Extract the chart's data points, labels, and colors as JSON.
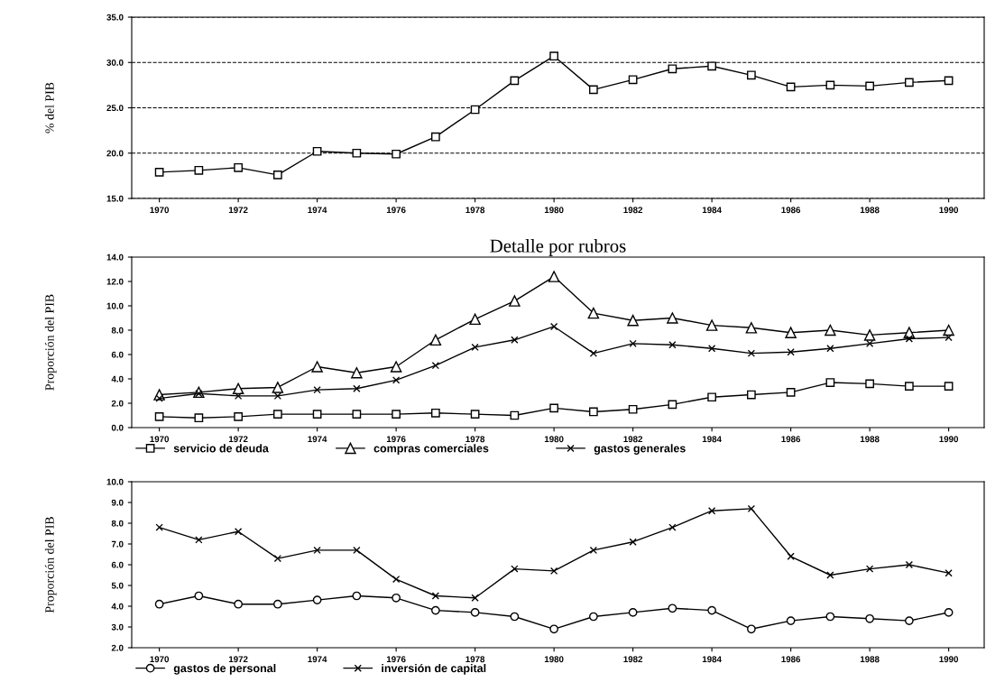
{
  "chart_data": [
    {
      "type": "line",
      "ylabel": "% del PIB",
      "x": [
        1970,
        1971,
        1972,
        1973,
        1974,
        1975,
        1976,
        1977,
        1978,
        1979,
        1980,
        1981,
        1982,
        1983,
        1984,
        1985,
        1986,
        1987,
        1988,
        1989,
        1990
      ],
      "series": [
        {
          "color": "#000000",
          "marker": "square",
          "values": [
            17.9,
            18.1,
            18.4,
            17.6,
            20.2,
            20.0,
            19.9,
            21.8,
            24.8,
            28.0,
            30.7,
            27.0,
            28.1,
            29.3,
            29.6,
            28.6,
            27.3,
            27.5,
            27.4,
            27.8,
            28.0
          ]
        }
      ],
      "xlim": [
        1969.3,
        1990.9
      ],
      "xticks": [
        1970,
        1972,
        1974,
        1976,
        1978,
        1980,
        1982,
        1984,
        1986,
        1988,
        1990
      ],
      "ylim": [
        15,
        35
      ],
      "yticks": [
        {
          "value": 15,
          "label": "15.0"
        },
        {
          "value": 20,
          "label": "20.0"
        },
        {
          "value": 25,
          "label": "25.0"
        },
        {
          "value": 30,
          "label": "30.0"
        },
        {
          "value": 35,
          "label": "35.0"
        }
      ],
      "grid": "y",
      "line_style": "solid"
    },
    {
      "type": "line",
      "title": "Detalle por rubros",
      "ylabel": "Proporción del PIB",
      "x": [
        1970,
        1971,
        1972,
        1973,
        1974,
        1975,
        1976,
        1977,
        1978,
        1979,
        1980,
        1981,
        1982,
        1983,
        1984,
        1985,
        1986,
        1987,
        1988,
        1989,
        1990
      ],
      "series": [
        {
          "name": "servicio de deuda",
          "color": "#000000",
          "marker": "square",
          "values": [
            0.9,
            0.8,
            0.9,
            1.1,
            1.1,
            1.1,
            1.1,
            1.2,
            1.1,
            1.0,
            1.6,
            1.3,
            1.5,
            1.9,
            2.5,
            2.7,
            2.9,
            3.7,
            3.6,
            3.4,
            3.4
          ]
        },
        {
          "name": "compras comerciales",
          "color": "#000000",
          "marker": "triangle",
          "values": [
            2.7,
            2.9,
            3.2,
            3.3,
            5.0,
            4.5,
            5.0,
            7.2,
            8.9,
            10.4,
            12.4,
            9.4,
            8.8,
            9.0,
            8.4,
            8.2,
            7.8,
            8.0,
            7.6,
            7.8,
            8.0
          ]
        },
        {
          "name": "gastos generales",
          "color": "#000000",
          "marker": "cross",
          "values": [
            2.4,
            2.8,
            2.6,
            2.6,
            3.1,
            3.2,
            3.9,
            5.1,
            6.6,
            7.2,
            8.3,
            6.1,
            6.9,
            6.8,
            6.5,
            6.1,
            6.2,
            6.5,
            6.9,
            7.3,
            7.4
          ]
        }
      ],
      "xlim": [
        1969.3,
        1990.9
      ],
      "xticks": [
        1970,
        1972,
        1974,
        1976,
        1978,
        1980,
        1982,
        1984,
        1986,
        1988,
        1990
      ],
      "ylim": [
        0,
        14
      ],
      "yticks": [
        {
          "value": 0,
          "label": "0.0"
        },
        {
          "value": 2,
          "label": "2.0"
        },
        {
          "value": 4,
          "label": "4.0"
        },
        {
          "value": 6,
          "label": "6.0"
        },
        {
          "value": 8,
          "label": "8.0"
        },
        {
          "value": 10,
          "label": "10.0"
        },
        {
          "value": 12,
          "label": "12.0"
        },
        {
          "value": 14,
          "label": "14.0"
        }
      ],
      "legend": "bottom",
      "line_style": "solid"
    },
    {
      "type": "line",
      "ylabel": "Proporción del PIB",
      "x": [
        1970,
        1971,
        1972,
        1973,
        1974,
        1975,
        1976,
        1977,
        1978,
        1979,
        1980,
        1981,
        1982,
        1983,
        1984,
        1985,
        1986,
        1987,
        1988,
        1989,
        1990
      ],
      "series": [
        {
          "name": "gastos de personal",
          "color": "#000000",
          "marker": "circle",
          "values": [
            4.1,
            4.5,
            4.1,
            4.1,
            4.3,
            4.5,
            4.4,
            3.8,
            3.7,
            3.5,
            2.9,
            3.5,
            3.7,
            3.9,
            3.8,
            2.9,
            3.3,
            3.5,
            3.4,
            3.3,
            3.7
          ]
        },
        {
          "name": "inversión de capital",
          "color": "#000000",
          "marker": "cross",
          "values": [
            7.8,
            7.2,
            7.6,
            6.3,
            6.7,
            6.7,
            5.3,
            4.5,
            4.4,
            5.8,
            5.7,
            6.7,
            7.1,
            7.8,
            8.6,
            8.7,
            6.4,
            5.5,
            5.8,
            6.0,
            5.6
          ]
        }
      ],
      "xlim": [
        1969.3,
        1990.9
      ],
      "xticks": [
        1970,
        1972,
        1974,
        1976,
        1978,
        1980,
        1982,
        1984,
        1986,
        1988,
        1990
      ],
      "ylim": [
        2,
        10
      ],
      "yticks": [
        {
          "value": 2,
          "label": "2.0"
        },
        {
          "value": 3,
          "label": "3.0"
        },
        {
          "value": 4,
          "label": "4.0"
        },
        {
          "value": 5,
          "label": "5.0"
        },
        {
          "value": 6,
          "label": "6.0"
        },
        {
          "value": 7,
          "label": "7.0"
        },
        {
          "value": 8,
          "label": "8.0"
        },
        {
          "value": 9,
          "label": "9.0"
        },
        {
          "value": 10,
          "label": "10.0"
        }
      ],
      "legend": "bottom",
      "line_style": "solid"
    }
  ]
}
